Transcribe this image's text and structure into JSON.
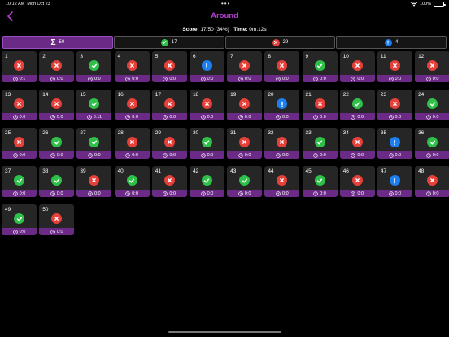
{
  "status_bar": {
    "time": "10:12 AM",
    "date": "Mon Oct 23",
    "battery": "100%"
  },
  "nav": {
    "title": "Around",
    "back_icon": "chevron-left-icon"
  },
  "score": {
    "score_label": "Score:",
    "score_value": "17/50 (34%)",
    "time_label": "Time:",
    "time_value": "0m:12s"
  },
  "filters": [
    {
      "key": "all",
      "icon": "sigma-icon",
      "count": "50",
      "active": true
    },
    {
      "key": "correct",
      "icon": "checkmark-icon",
      "count": "17",
      "active": false
    },
    {
      "key": "wrong",
      "icon": "x-mark-icon",
      "count": "29",
      "active": false
    },
    {
      "key": "skipped",
      "icon": "exclamation-icon",
      "count": "4",
      "active": false
    }
  ],
  "colors": {
    "accent": "#b43ed0",
    "bar": "#6a2a85",
    "correct": "#2fc04a",
    "wrong": "#e5403a",
    "skipped": "#1c7ff0",
    "tile": "#262626"
  },
  "questions": [
    {
      "n": "1",
      "s": "wrong",
      "t": "0:1"
    },
    {
      "n": "2",
      "s": "wrong",
      "t": "0:0"
    },
    {
      "n": "3",
      "s": "correct",
      "t": "0:0"
    },
    {
      "n": "4",
      "s": "wrong",
      "t": "0:0"
    },
    {
      "n": "5",
      "s": "wrong",
      "t": "0:0"
    },
    {
      "n": "6",
      "s": "skipped",
      "t": "0:0"
    },
    {
      "n": "7",
      "s": "wrong",
      "t": "0:0"
    },
    {
      "n": "8",
      "s": "wrong",
      "t": "0:0"
    },
    {
      "n": "9",
      "s": "correct",
      "t": "0:0"
    },
    {
      "n": "10",
      "s": "wrong",
      "t": "0:0"
    },
    {
      "n": "11",
      "s": "wrong",
      "t": "0:0"
    },
    {
      "n": "12",
      "s": "wrong",
      "t": "0:0"
    },
    {
      "n": "13",
      "s": "wrong",
      "t": "0:0"
    },
    {
      "n": "14",
      "s": "wrong",
      "t": "0:0"
    },
    {
      "n": "15",
      "s": "correct",
      "t": "0:11"
    },
    {
      "n": "16",
      "s": "wrong",
      "t": "0:0"
    },
    {
      "n": "17",
      "s": "wrong",
      "t": "0:0"
    },
    {
      "n": "18",
      "s": "wrong",
      "t": "0:0"
    },
    {
      "n": "19",
      "s": "wrong",
      "t": "0:0"
    },
    {
      "n": "20",
      "s": "skipped",
      "t": "0:0"
    },
    {
      "n": "21",
      "s": "wrong",
      "t": "0:0"
    },
    {
      "n": "22",
      "s": "correct",
      "t": "0:0"
    },
    {
      "n": "23",
      "s": "wrong",
      "t": "0:0"
    },
    {
      "n": "24",
      "s": "correct",
      "t": "0:0"
    },
    {
      "n": "25",
      "s": "wrong",
      "t": "0:0"
    },
    {
      "n": "26",
      "s": "correct",
      "t": "0:0"
    },
    {
      "n": "27",
      "s": "correct",
      "t": "0:0"
    },
    {
      "n": "28",
      "s": "wrong",
      "t": "0:0"
    },
    {
      "n": "29",
      "s": "wrong",
      "t": "0:0"
    },
    {
      "n": "30",
      "s": "correct",
      "t": "0:0"
    },
    {
      "n": "31",
      "s": "wrong",
      "t": "0:0"
    },
    {
      "n": "32",
      "s": "wrong",
      "t": "0:0"
    },
    {
      "n": "33",
      "s": "correct",
      "t": "0:0"
    },
    {
      "n": "34",
      "s": "wrong",
      "t": "0:0"
    },
    {
      "n": "35",
      "s": "skipped",
      "t": "0:0"
    },
    {
      "n": "36",
      "s": "correct",
      "t": "0:0"
    },
    {
      "n": "37",
      "s": "correct",
      "t": "0:0"
    },
    {
      "n": "38",
      "s": "correct",
      "t": "0:0"
    },
    {
      "n": "39",
      "s": "wrong",
      "t": "0:0"
    },
    {
      "n": "40",
      "s": "correct",
      "t": "0:0"
    },
    {
      "n": "41",
      "s": "wrong",
      "t": "0:0"
    },
    {
      "n": "42",
      "s": "correct",
      "t": "0:0"
    },
    {
      "n": "43",
      "s": "correct",
      "t": "0:0"
    },
    {
      "n": "44",
      "s": "wrong",
      "t": "0:0"
    },
    {
      "n": "45",
      "s": "correct",
      "t": "0:0"
    },
    {
      "n": "46",
      "s": "wrong",
      "t": "0:0"
    },
    {
      "n": "47",
      "s": "skipped",
      "t": "0:0"
    },
    {
      "n": "48",
      "s": "wrong",
      "t": "0:0"
    },
    {
      "n": "49",
      "s": "correct",
      "t": "0:0"
    },
    {
      "n": "50",
      "s": "wrong",
      "t": "0:0"
    }
  ]
}
